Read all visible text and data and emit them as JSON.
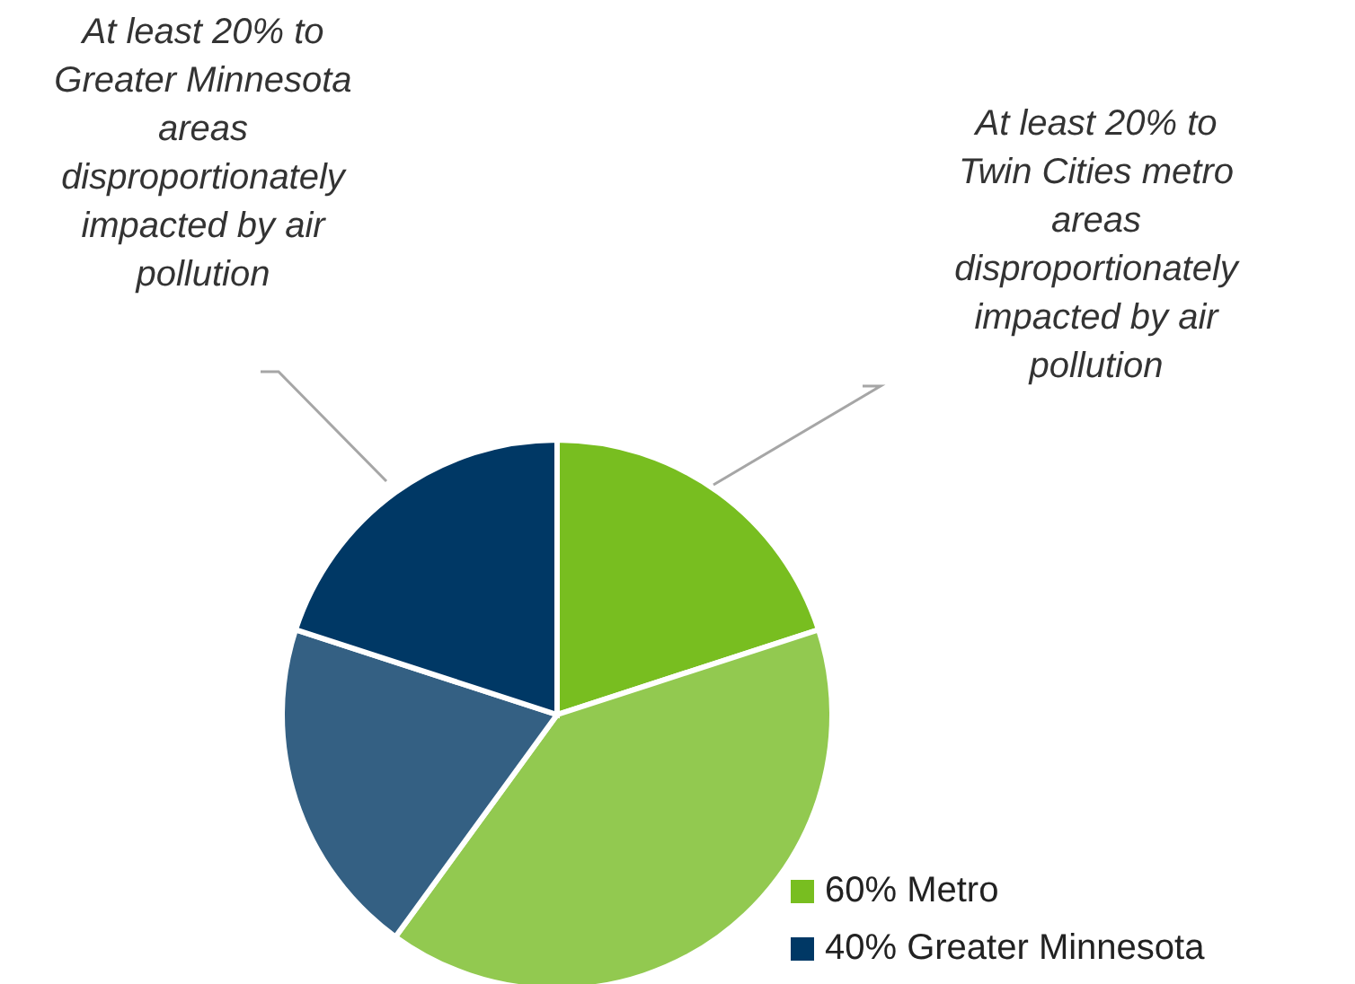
{
  "chart_data": {
    "type": "pie",
    "categories": [
      "60% Metro",
      null,
      null,
      "40% Greater Minnesota"
    ],
    "values": [
      20,
      40,
      20,
      20
    ],
    "colors": [
      "#78be20",
      "#92c950",
      "#346083",
      "#003865"
    ],
    "legend": "bottom right",
    "annotations": [
      "At least 20% to Greater Minnesota areas disproportionately impacted by air pollution",
      "At least 20% to Twin Cities metro areas disproportionately impacted by air pollution"
    ]
  }
}
